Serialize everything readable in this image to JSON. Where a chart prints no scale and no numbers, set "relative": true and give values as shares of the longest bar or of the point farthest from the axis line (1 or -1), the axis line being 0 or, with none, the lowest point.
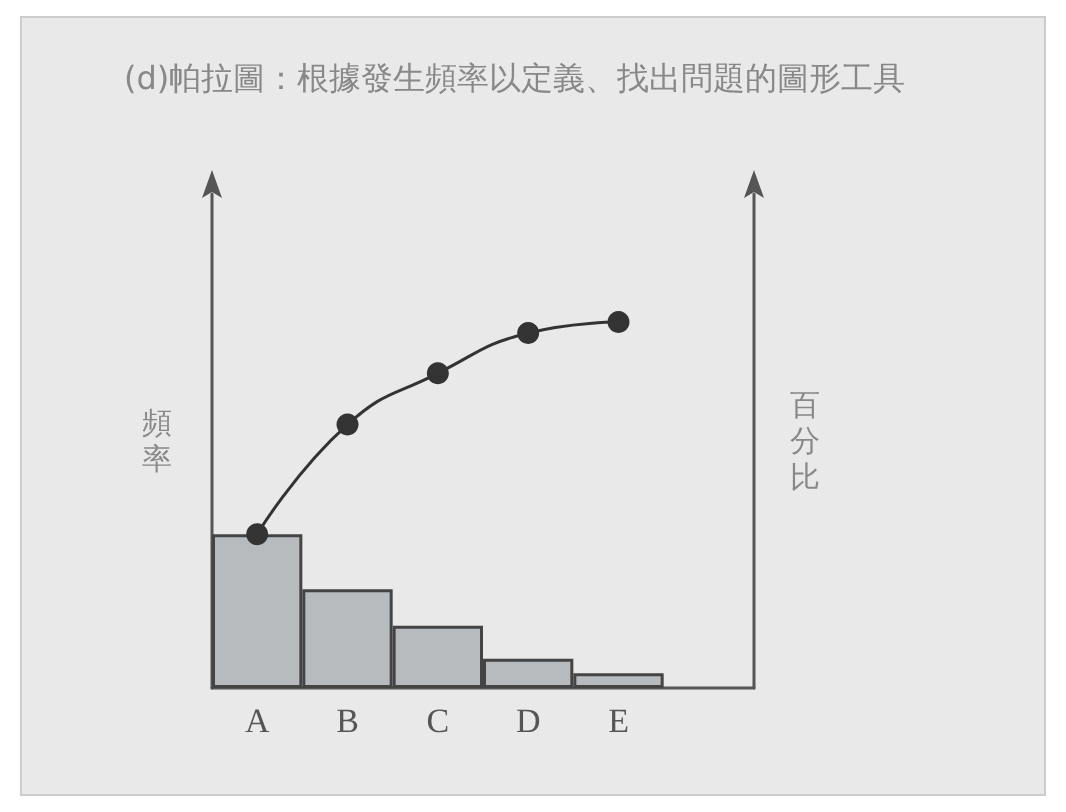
{
  "chart_data": {
    "type": "bar",
    "title": "(d)帕拉圖：根據發生頻率以定義、找出問題的圖形工具",
    "ylabel": "頻率",
    "y2label": "百分比",
    "relative": true,
    "categories": [
      "A",
      "B",
      "C",
      "D",
      "E"
    ],
    "series": [
      {
        "color": "#b7bbbe",
        "values": [
          0.42,
          0.27,
          0.17,
          0.08,
          0.04
        ]
      },
      {
        "type": "line",
        "color": "#333333",
        "values": [
          0.42,
          0.72,
          0.86,
          0.97,
          1.0
        ]
      }
    ],
    "marker": "circle",
    "grid": false
  }
}
